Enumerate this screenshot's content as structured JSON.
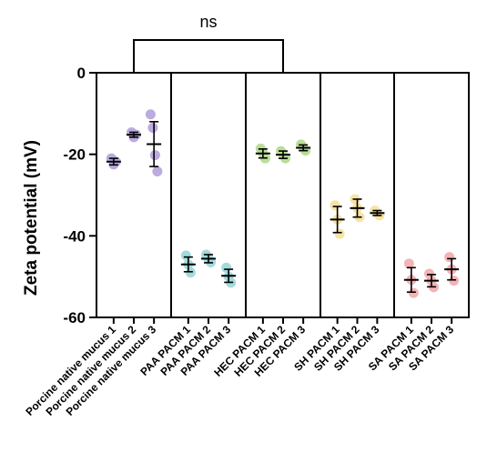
{
  "chart_data": {
    "type": "scatter",
    "ylabel": "Zeta potential (mV)",
    "ylim": [
      -60,
      0
    ],
    "yticks": [
      0,
      -20,
      -40,
      -60
    ],
    "grid": false,
    "annotation": {
      "text": "ns",
      "from": "Porcine native mucus 2",
      "to": "HEC PACM 2"
    },
    "groups": [
      {
        "color": "#b7a6dd",
        "categories": [
          "Porcine native mucus 1",
          "Porcine native mucus 2",
          "Porcine native mucus 3"
        ]
      },
      {
        "color": "#9fd8da",
        "categories": [
          "PAA PACM 1",
          "PAA PACM 2",
          "PAA PACM 3"
        ]
      },
      {
        "color": "#b5dc93",
        "categories": [
          "HEC PACM 1",
          "HEC PACM 2",
          "HEC PACM 3"
        ]
      },
      {
        "color": "#f7e2a0",
        "categories": [
          "SH PACM 1",
          "SH PACM 2",
          "SH PACM 3"
        ]
      },
      {
        "color": "#f3b0b3",
        "categories": [
          "SA PACM 1",
          "SA PACM 2",
          "SA PACM 3"
        ]
      }
    ],
    "series": [
      {
        "category": "Porcine native mucus 1",
        "mean": -21.8,
        "sd": 0.8,
        "points": [
          -21.0,
          -22.5,
          -21.8
        ]
      },
      {
        "category": "Porcine native mucus 2",
        "mean": -15.2,
        "sd": 0.6,
        "points": [
          -14.6,
          -15.8,
          -15.2
        ]
      },
      {
        "category": "Porcine native mucus 3",
        "mean": -17.5,
        "sd": 5.5,
        "points": [
          -10.2,
          -13.5,
          -20.2,
          -24.2
        ]
      },
      {
        "category": "PAA PACM 1",
        "mean": -47.0,
        "sd": 1.8,
        "points": [
          -44.8,
          -47.0,
          -49.0
        ]
      },
      {
        "category": "PAA PACM 2",
        "mean": -45.6,
        "sd": 1.0,
        "points": [
          -44.6,
          -45.6,
          -46.5
        ]
      },
      {
        "category": "PAA PACM 3",
        "mean": -49.8,
        "sd": 1.6,
        "points": [
          -47.8,
          -50.0,
          -51.5
        ]
      },
      {
        "category": "HEC PACM 1",
        "mean": -19.8,
        "sd": 1.1,
        "points": [
          -18.6,
          -19.8,
          -21.0
        ]
      },
      {
        "category": "HEC PACM 2",
        "mean": -20.1,
        "sd": 0.9,
        "points": [
          -19.2,
          -20.1,
          -21.0
        ]
      },
      {
        "category": "HEC PACM 3",
        "mean": -18.4,
        "sd": 0.7,
        "points": [
          -17.6,
          -18.4,
          -19.1
        ]
      },
      {
        "category": "SH PACM 1",
        "mean": -36.0,
        "sd": 3.2,
        "points": [
          -32.5,
          -36.0,
          -39.5
        ]
      },
      {
        "category": "SH PACM 2",
        "mean": -33.2,
        "sd": 2.2,
        "points": [
          -31.0,
          -33.2,
          -35.4
        ]
      },
      {
        "category": "SH PACM 3",
        "mean": -34.4,
        "sd": 0.6,
        "points": [
          -33.8,
          -34.4,
          -35.0
        ]
      },
      {
        "category": "SA PACM 1",
        "mean": -50.8,
        "sd": 3.0,
        "points": [
          -46.8,
          -50.8,
          -54.0
        ]
      },
      {
        "category": "SA PACM 2",
        "mean": -51.0,
        "sd": 1.5,
        "points": [
          -49.3,
          -51.0,
          -52.6
        ]
      },
      {
        "category": "SA PACM 3",
        "mean": -48.2,
        "sd": 2.6,
        "points": [
          -45.2,
          -48.2,
          -51.0
        ]
      }
    ]
  }
}
